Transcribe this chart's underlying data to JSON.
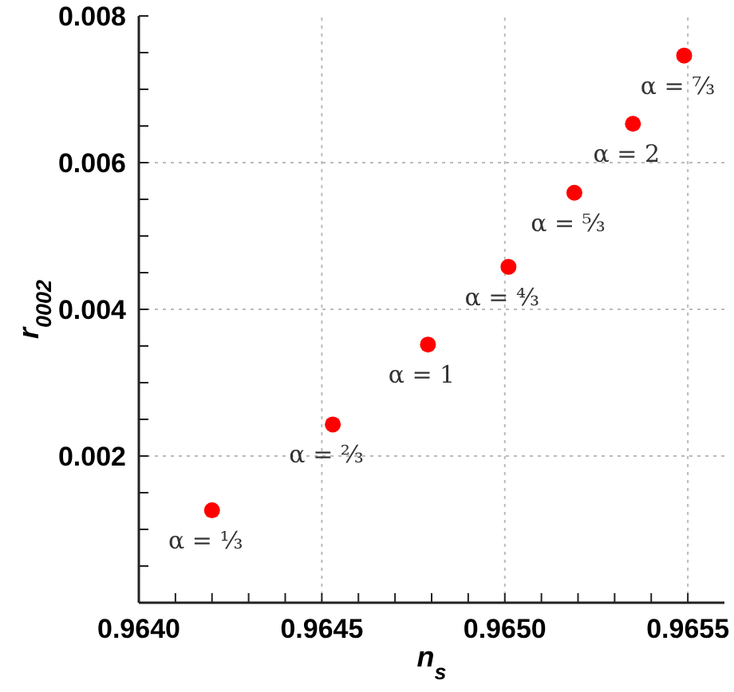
{
  "chart_data": {
    "type": "scatter",
    "xlabel": "n$_{s}$",
    "ylabel": "r$_{0002}$",
    "x": [
      0.9642,
      0.96453,
      0.96479,
      0.96501,
      0.96519,
      0.96535,
      0.96549
    ],
    "series": [
      {
        "color": "#ff0000",
        "values": [
          0.00126,
          0.00243,
          0.00352,
          0.00458,
          0.00559,
          0.00653,
          0.00746
        ]
      }
    ],
    "marker": "circle",
    "xlim": [
      0.964,
      0.9656
    ],
    "xticks": [
      {
        "value": 0.964,
        "label": "0.9640"
      },
      {
        "value": 0.9641,
        "label": null
      },
      {
        "value": 0.9642,
        "label": null
      },
      {
        "value": 0.9643,
        "label": null
      },
      {
        "value": 0.9644,
        "label": null
      },
      {
        "value": 0.9645,
        "label": "0.9645"
      },
      {
        "value": 0.9646,
        "label": null
      },
      {
        "value": 0.9647,
        "label": null
      },
      {
        "value": 0.9648,
        "label": null
      },
      {
        "value": 0.9649,
        "label": null
      },
      {
        "value": 0.965,
        "label": "0.9650"
      },
      {
        "value": 0.9651,
        "label": null
      },
      {
        "value": 0.9652,
        "label": null
      },
      {
        "value": 0.9653,
        "label": null
      },
      {
        "value": 0.9654,
        "label": null
      },
      {
        "value": 0.9655,
        "label": "0.9655"
      }
    ],
    "ylim": [
      0,
      0.008
    ],
    "yticks": [
      {
        "value": 0.0005,
        "label": null
      },
      {
        "value": 0.001,
        "label": null
      },
      {
        "value": 0.0015,
        "label": null
      },
      {
        "value": 0.002,
        "label": "0.002"
      },
      {
        "value": 0.0025,
        "label": null
      },
      {
        "value": 0.003,
        "label": null
      },
      {
        "value": 0.0035,
        "label": null
      },
      {
        "value": 0.004,
        "label": "0.004"
      },
      {
        "value": 0.0045,
        "label": null
      },
      {
        "value": 0.005,
        "label": null
      },
      {
        "value": 0.0055,
        "label": null
      },
      {
        "value": 0.006,
        "label": "0.006"
      },
      {
        "value": 0.0065,
        "label": null
      },
      {
        "value": 0.007,
        "label": null
      },
      {
        "value": 0.0075,
        "label": null
      },
      {
        "value": 0.008,
        "label": "0.008"
      }
    ],
    "grid": true,
    "annotations": [
      {
        "text": "α = ⅓",
        "x": 0.9642,
        "y": 0.00126
      },
      {
        "text": "α = ⅔",
        "x": 0.96453,
        "y": 0.00243
      },
      {
        "text": "α = 1",
        "x": 0.96479,
        "y": 0.00352
      },
      {
        "text": "α = ⁴⁄₃",
        "x": 0.96501,
        "y": 0.00458
      },
      {
        "text": "α = ⁵⁄₃",
        "x": 0.96519,
        "y": 0.00559
      },
      {
        "text": "α = 2",
        "x": 0.96535,
        "y": 0.00653
      },
      {
        "text": "α = ⁷⁄₃",
        "x": 0.96549,
        "y": 0.00746
      }
    ]
  }
}
